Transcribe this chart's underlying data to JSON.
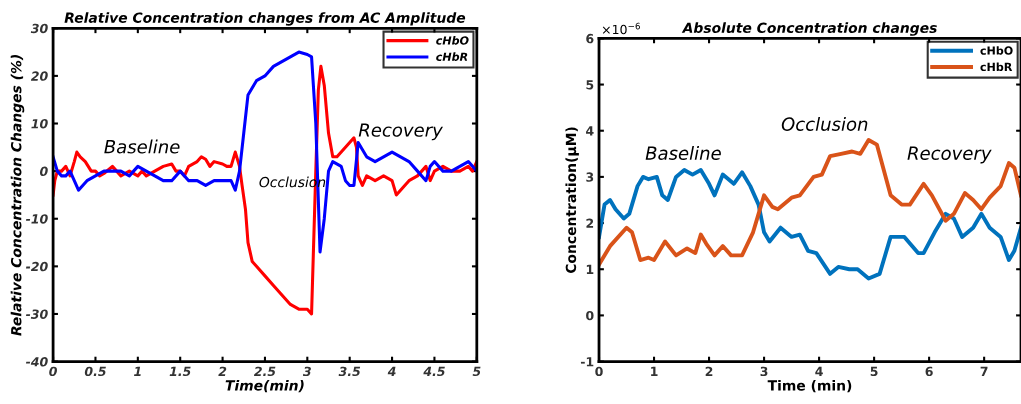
{
  "chart_data": [
    {
      "type": "line",
      "title": "Relative Concentration changes from AC Amplitude",
      "xlabel": "Time(min)",
      "ylabel": "Relative Concentration Changes (%)",
      "xlim": [
        0,
        5
      ],
      "xticks": [
        0,
        0.5,
        1,
        1.5,
        2,
        2.5,
        3,
        3.5,
        4,
        4.5,
        5
      ],
      "ylim": [
        -40,
        30
      ],
      "yticks": [
        -40,
        -30,
        -20,
        -10,
        0,
        10,
        20,
        30
      ],
      "legend": "top right",
      "grid": false,
      "annotations": [
        "Baseline",
        "Occlusion",
        "Recovery"
      ],
      "series": [
        {
          "name": "cHbO",
          "color": "#ff0000",
          "x": [
            0,
            0.02,
            0.05,
            0.1,
            0.15,
            0.2,
            0.25,
            0.28,
            0.32,
            0.38,
            0.45,
            0.5,
            0.55,
            0.6,
            0.7,
            0.8,
            0.9,
            1.0,
            1.05,
            1.1,
            1.2,
            1.3,
            1.4,
            1.45,
            1.5,
            1.55,
            1.6,
            1.7,
            1.75,
            1.8,
            1.85,
            1.9,
            2.0,
            2.05,
            2.1,
            2.15,
            2.2,
            2.23,
            2.27,
            2.3,
            2.35,
            2.4,
            2.5,
            2.6,
            2.7,
            2.8,
            2.9,
            3.0,
            3.05,
            3.1,
            3.13,
            3.16,
            3.2,
            3.25,
            3.3,
            3.35,
            3.4,
            3.5,
            3.55,
            3.58,
            3.6,
            3.65,
            3.7,
            3.8,
            3.9,
            4.0,
            4.05,
            4.1,
            4.2,
            4.3,
            4.4,
            4.45,
            4.5,
            4.6,
            4.7,
            4.8,
            4.9,
            4.95,
            5.0
          ],
          "values": [
            -5,
            -2,
            0,
            0,
            1,
            -1,
            2,
            4,
            3,
            2,
            0,
            0,
            -1,
            -0.5,
            1,
            -1,
            0,
            -1,
            0,
            -1,
            0,
            1,
            1.5,
            0,
            0,
            -1,
            1,
            2,
            3,
            2.5,
            1,
            2,
            1.5,
            1,
            1,
            4,
            1,
            -3,
            -8,
            -15,
            -19,
            -20,
            -22,
            -24,
            -26,
            -28,
            -29,
            -29,
            -30,
            0,
            17,
            22,
            18,
            8,
            3,
            3,
            4,
            6,
            7,
            5,
            -1,
            -3,
            -1,
            -2,
            -1,
            -2,
            -5,
            -4,
            -2,
            -1,
            1,
            -2,
            0,
            1,
            0,
            0,
            1,
            0,
            2
          ]
        },
        {
          "name": "cHbR",
          "color": "#0000ff",
          "x": [
            0,
            0.05,
            0.1,
            0.15,
            0.2,
            0.25,
            0.3,
            0.35,
            0.4,
            0.5,
            0.6,
            0.7,
            0.8,
            0.9,
            1.0,
            1.1,
            1.2,
            1.3,
            1.4,
            1.5,
            1.6,
            1.7,
            1.8,
            1.9,
            2.0,
            2.1,
            2.15,
            2.2,
            2.25,
            2.3,
            2.4,
            2.5,
            2.6,
            2.7,
            2.8,
            2.9,
            3.0,
            3.05,
            3.1,
            3.15,
            3.2,
            3.25,
            3.3,
            3.4,
            3.45,
            3.5,
            3.55,
            3.6,
            3.7,
            3.8,
            3.9,
            4.0,
            4.1,
            4.2,
            4.3,
            4.4,
            4.45,
            4.5,
            4.6,
            4.7,
            4.8,
            4.9,
            5.0
          ],
          "values": [
            3,
            0,
            -1,
            -1,
            0,
            -2,
            -4,
            -3,
            -2,
            -1,
            0,
            0,
            0,
            -1,
            1,
            0,
            -1,
            -2,
            -2,
            0,
            -2,
            -2,
            -3,
            -2,
            -2,
            -2,
            -4,
            0,
            8,
            16,
            19,
            20,
            22,
            23,
            24,
            25,
            24.5,
            24,
            10,
            -17,
            -10,
            0,
            2,
            1,
            -2,
            -3,
            -3,
            6,
            3,
            2,
            3,
            4,
            3,
            2,
            0,
            -2,
            1,
            2,
            0,
            0,
            1,
            2,
            0
          ]
        }
      ]
    },
    {
      "type": "line",
      "title": "Absolute Concentration changes",
      "xlabel": "Time (min)",
      "ylabel": "Concentration(μM)",
      "xlim": [
        0,
        7.67
      ],
      "xticks": [
        0,
        1,
        2,
        3,
        4,
        5,
        6,
        7
      ],
      "ylim": [
        -1,
        6
      ],
      "yticks": [
        -1,
        0,
        1,
        2,
        3,
        4,
        5,
        6
      ],
      "legend": "top right",
      "grid": false,
      "annotations": [
        "×10$^{−6}$",
        "Baseline",
        "Occlusion",
        "Recovery"
      ],
      "series": [
        {
          "name": "cHbO",
          "color": "#0072bd",
          "x": [
            0,
            0.1,
            0.2,
            0.3,
            0.45,
            0.55,
            0.7,
            0.8,
            0.9,
            1.05,
            1.15,
            1.25,
            1.4,
            1.55,
            1.7,
            1.85,
            2.0,
            2.1,
            2.25,
            2.45,
            2.6,
            2.75,
            2.9,
            3.0,
            3.1,
            3.3,
            3.5,
            3.65,
            3.8,
            3.95,
            4.2,
            4.35,
            4.55,
            4.7,
            4.9,
            5.1,
            5.3,
            5.55,
            5.8,
            5.9,
            6.1,
            6.3,
            6.45,
            6.6,
            6.8,
            6.95,
            7.1,
            7.3,
            7.45,
            7.55,
            7.67
          ],
          "values": [
            1.7,
            2.4,
            2.5,
            2.3,
            2.1,
            2.2,
            2.8,
            3.0,
            2.95,
            3.0,
            2.6,
            2.5,
            3.0,
            3.15,
            3.05,
            3.15,
            2.85,
            2.6,
            3.05,
            2.85,
            3.1,
            2.8,
            2.4,
            1.8,
            1.6,
            1.9,
            1.7,
            1.75,
            1.4,
            1.35,
            0.9,
            1.05,
            1.0,
            1.0,
            0.8,
            0.9,
            1.7,
            1.7,
            1.35,
            1.35,
            1.8,
            2.2,
            2.1,
            1.7,
            1.9,
            2.2,
            1.9,
            1.7,
            1.2,
            1.4,
            1.9
          ]
        },
        {
          "name": "cHbR",
          "color": "#d95319",
          "x": [
            0,
            0.2,
            0.5,
            0.6,
            0.75,
            0.9,
            1.0,
            1.2,
            1.4,
            1.6,
            1.75,
            1.85,
            1.95,
            2.1,
            2.25,
            2.4,
            2.6,
            2.8,
            3.0,
            3.15,
            3.25,
            3.5,
            3.65,
            3.9,
            4.05,
            4.2,
            4.4,
            4.6,
            4.75,
            4.9,
            5.05,
            5.3,
            5.5,
            5.65,
            5.9,
            6.05,
            6.3,
            6.45,
            6.65,
            6.8,
            6.95,
            7.1,
            7.3,
            7.45,
            7.55,
            7.67
          ],
          "values": [
            1.1,
            1.5,
            1.9,
            1.8,
            1.2,
            1.25,
            1.2,
            1.6,
            1.3,
            1.45,
            1.35,
            1.75,
            1.55,
            1.3,
            1.5,
            1.3,
            1.3,
            1.8,
            2.6,
            2.35,
            2.3,
            2.55,
            2.6,
            3.0,
            3.05,
            3.45,
            3.5,
            3.55,
            3.5,
            3.8,
            3.7,
            2.6,
            2.4,
            2.4,
            2.85,
            2.6,
            2.05,
            2.2,
            2.65,
            2.5,
            2.3,
            2.55,
            2.8,
            3.3,
            3.2,
            2.6
          ]
        }
      ]
    }
  ]
}
